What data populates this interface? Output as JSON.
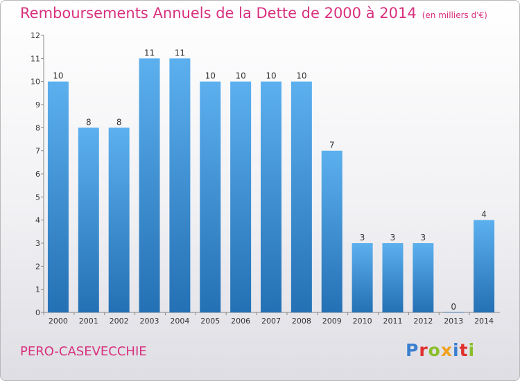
{
  "title": "Remboursements Annuels de la Dette de 2000 à 2014",
  "unit": "(en milliers d'€)",
  "commune": "PERO-CASEVECCHIE",
  "logo": {
    "text": "Proxiti",
    "colors": [
      "#3a7fd0",
      "#e0312f",
      "#8bbf2a",
      "#f2a11d",
      "#3a7fd0",
      "#e0312f",
      "#8bbf2a"
    ]
  },
  "colors": {
    "title": "#d8307e",
    "bar_light": "#5cb0ee",
    "bar_dark": "#2470b4"
  },
  "chart_data": {
    "type": "bar",
    "categories": [
      "2000",
      "2001",
      "2002",
      "2003",
      "2004",
      "2005",
      "2006",
      "2007",
      "2008",
      "2009",
      "2010",
      "2011",
      "2012",
      "2013",
      "2014"
    ],
    "values": [
      10,
      8,
      8,
      11,
      11,
      10,
      10,
      10,
      10,
      7,
      3,
      3,
      3,
      0,
      4
    ],
    "value_labels": [
      "10",
      "8",
      "8",
      "11",
      "11",
      "10",
      "10",
      "10",
      "10",
      "7",
      "3",
      "3",
      "3",
      "0",
      "4"
    ],
    "title": "Remboursements Annuels de la Dette de 2000 à 2014",
    "xlabel": "",
    "ylabel": "",
    "ylim": [
      0,
      12
    ],
    "yticks": [
      "0",
      "1",
      "2",
      "3",
      "4",
      "5",
      "6",
      "7",
      "8",
      "9",
      "10",
      "11",
      "12"
    ],
    "grid": false
  }
}
